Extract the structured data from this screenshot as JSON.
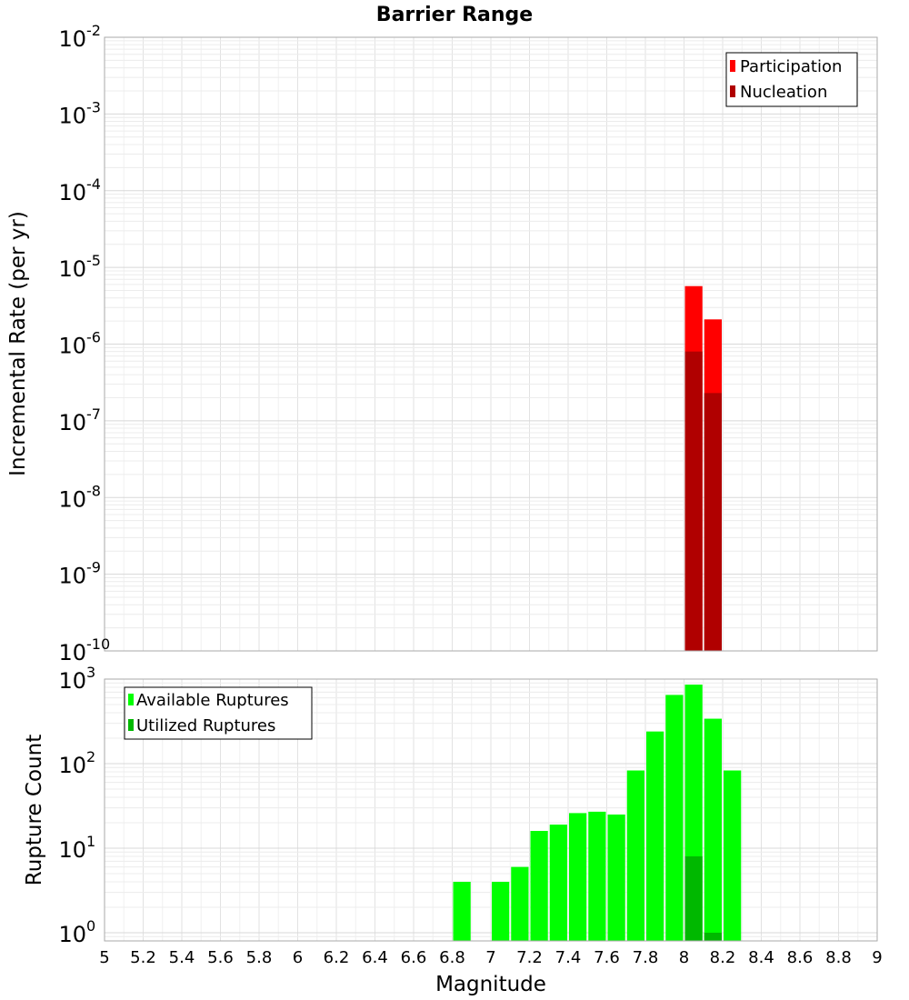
{
  "chart_data": [
    {
      "type": "bar",
      "title": "Barrier Range",
      "xlabel": "",
      "ylabel": "Incremental Rate (per yr)",
      "yscale": "log",
      "ylim": [
        1e-10,
        0.01
      ],
      "xlim": [
        5,
        9
      ],
      "yticks": [
        {
          "base": "10",
          "exp": "-10"
        },
        {
          "base": "10",
          "exp": "-9"
        },
        {
          "base": "10",
          "exp": "-8"
        },
        {
          "base": "10",
          "exp": "-7"
        },
        {
          "base": "10",
          "exp": "-6"
        },
        {
          "base": "10",
          "exp": "-5"
        },
        {
          "base": "10",
          "exp": "-4"
        },
        {
          "base": "10",
          "exp": "-3"
        },
        {
          "base": "10",
          "exp": "-2"
        }
      ],
      "legend_position": "top-right",
      "grid": true,
      "series": [
        {
          "name": "Participation",
          "color": "#ff0000",
          "x": [
            8.05,
            8.15
          ],
          "values": [
            5.7e-06,
            2.1e-06
          ]
        },
        {
          "name": "Nucleation",
          "color": "#b00000",
          "x": [
            8.05,
            8.15
          ],
          "values": [
            8e-07,
            2.3e-07
          ]
        }
      ]
    },
    {
      "type": "bar",
      "title": "",
      "xlabel": "Magnitude",
      "ylabel": "Rupture Count",
      "yscale": "log",
      "ylim": [
        0.8,
        1000
      ],
      "xlim": [
        5,
        9
      ],
      "yticks": [
        {
          "base": "10",
          "exp": "0"
        },
        {
          "base": "10",
          "exp": "1"
        },
        {
          "base": "10",
          "exp": "2"
        },
        {
          "base": "10",
          "exp": "3"
        }
      ],
      "xticks": [
        "5",
        "5.2",
        "5.4",
        "5.6",
        "5.8",
        "6",
        "6.2",
        "6.4",
        "6.6",
        "6.8",
        "7",
        "7.2",
        "7.4",
        "7.6",
        "7.8",
        "8",
        "8.2",
        "8.4",
        "8.6",
        "8.8",
        "9"
      ],
      "legend_position": "top-left",
      "grid": true,
      "series": [
        {
          "name": "Available Ruptures",
          "color": "#00ff00",
          "x": [
            6.85,
            7.05,
            7.15,
            7.25,
            7.35,
            7.45,
            7.55,
            7.65,
            7.75,
            7.85,
            7.95,
            8.05,
            8.15,
            8.25
          ],
          "values": [
            4,
            4,
            6,
            16,
            19,
            26,
            27,
            25,
            83,
            240,
            650,
            860,
            340,
            83
          ]
        },
        {
          "name": "Utilized Ruptures",
          "color": "#00b800",
          "x": [
            8.05,
            8.15
          ],
          "values": [
            8,
            1
          ]
        }
      ]
    }
  ]
}
